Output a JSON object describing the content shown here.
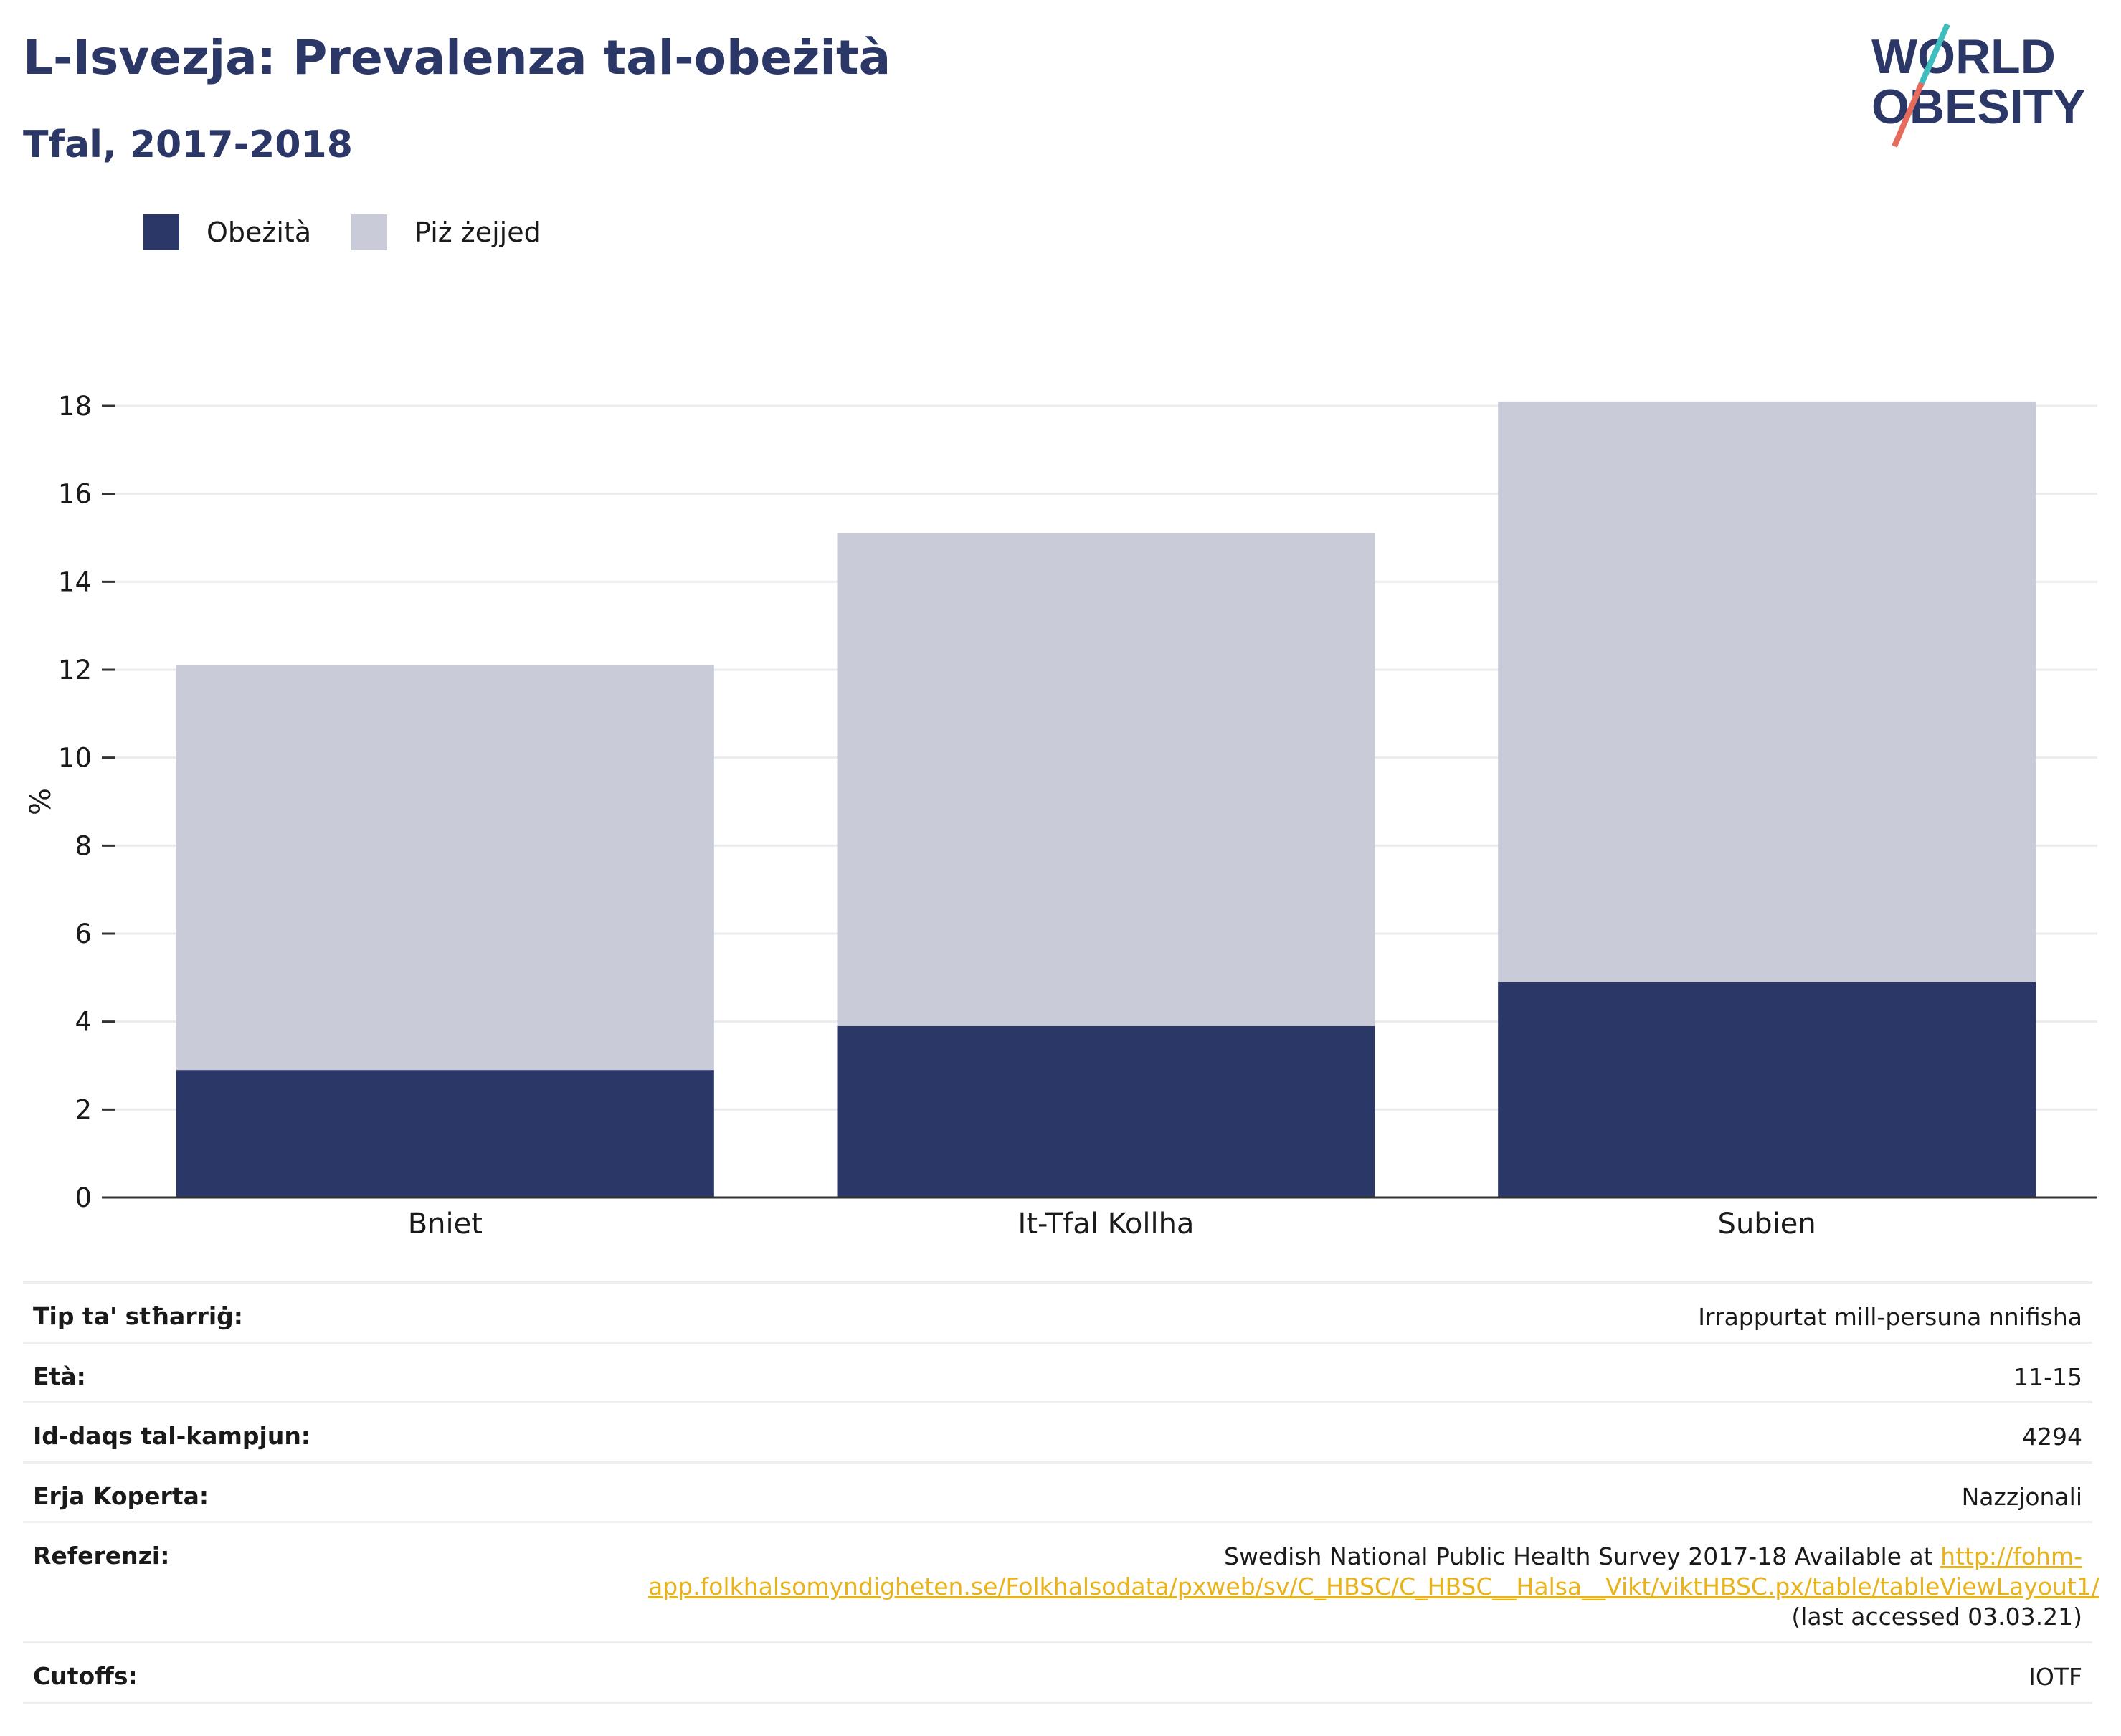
{
  "header": {
    "title": "L-Isvezja: Prevalenza tal-obeżità",
    "subtitle": "Tfal, 2017-2018"
  },
  "logo": {
    "line1": "WORLD",
    "line2": "OBESITY",
    "colors": {
      "text": "#2b3766",
      "slash_top": "#3dbdbd",
      "slash_bottom": "#e56b5d"
    }
  },
  "colors": {
    "obesity": "#2b3766",
    "overweight": "#c9ccd8",
    "grid": "#e9ebef",
    "axis": "#333333"
  },
  "chart_data": {
    "type": "bar",
    "stacked": true,
    "categories": [
      "Bniet",
      "It-Tfal Kollha",
      "Subien"
    ],
    "series": [
      {
        "name": "Obeżità",
        "values": [
          2.9,
          3.9,
          4.9
        ],
        "color": "#2b3766"
      },
      {
        "name": "Piż żejjed",
        "values": [
          9.2,
          11.2,
          13.2
        ],
        "color": "#c9ccd8"
      }
    ],
    "ylabel": "%",
    "ylim": [
      0,
      18
    ],
    "yticks": [
      "0",
      "2",
      "4",
      "6",
      "8",
      "10",
      "12",
      "14",
      "16",
      "18"
    ],
    "grid": true,
    "legend_position": "top-left"
  },
  "meta": {
    "rows": [
      {
        "key": "Tip ta' stħarriġ:",
        "value": "Irrappurtat mill-persuna nnifisha"
      },
      {
        "key": "Età:",
        "value": "11-15"
      },
      {
        "key": "Id-daqs tal-kampjun:",
        "value": "4294"
      },
      {
        "key": "Erja Koperta:",
        "value": "Nazzjonali"
      }
    ],
    "reference": {
      "key": "Referenzi:",
      "text_before": "Swedish National Public Health Survey 2017-18 Available at ",
      "link": "http://fohm-app.folkhalsomyndigheten.se/Folkhalsodata/pxweb/sv/C_HBSC/C_HBSC__Halsa__Vikt/viktHBSC.px/table/tableViewLayout1/",
      "text_after": " (last accessed 03.03.21)"
    },
    "cutoffs": {
      "key": "Cutoffs:",
      "value": "IOTF"
    }
  }
}
